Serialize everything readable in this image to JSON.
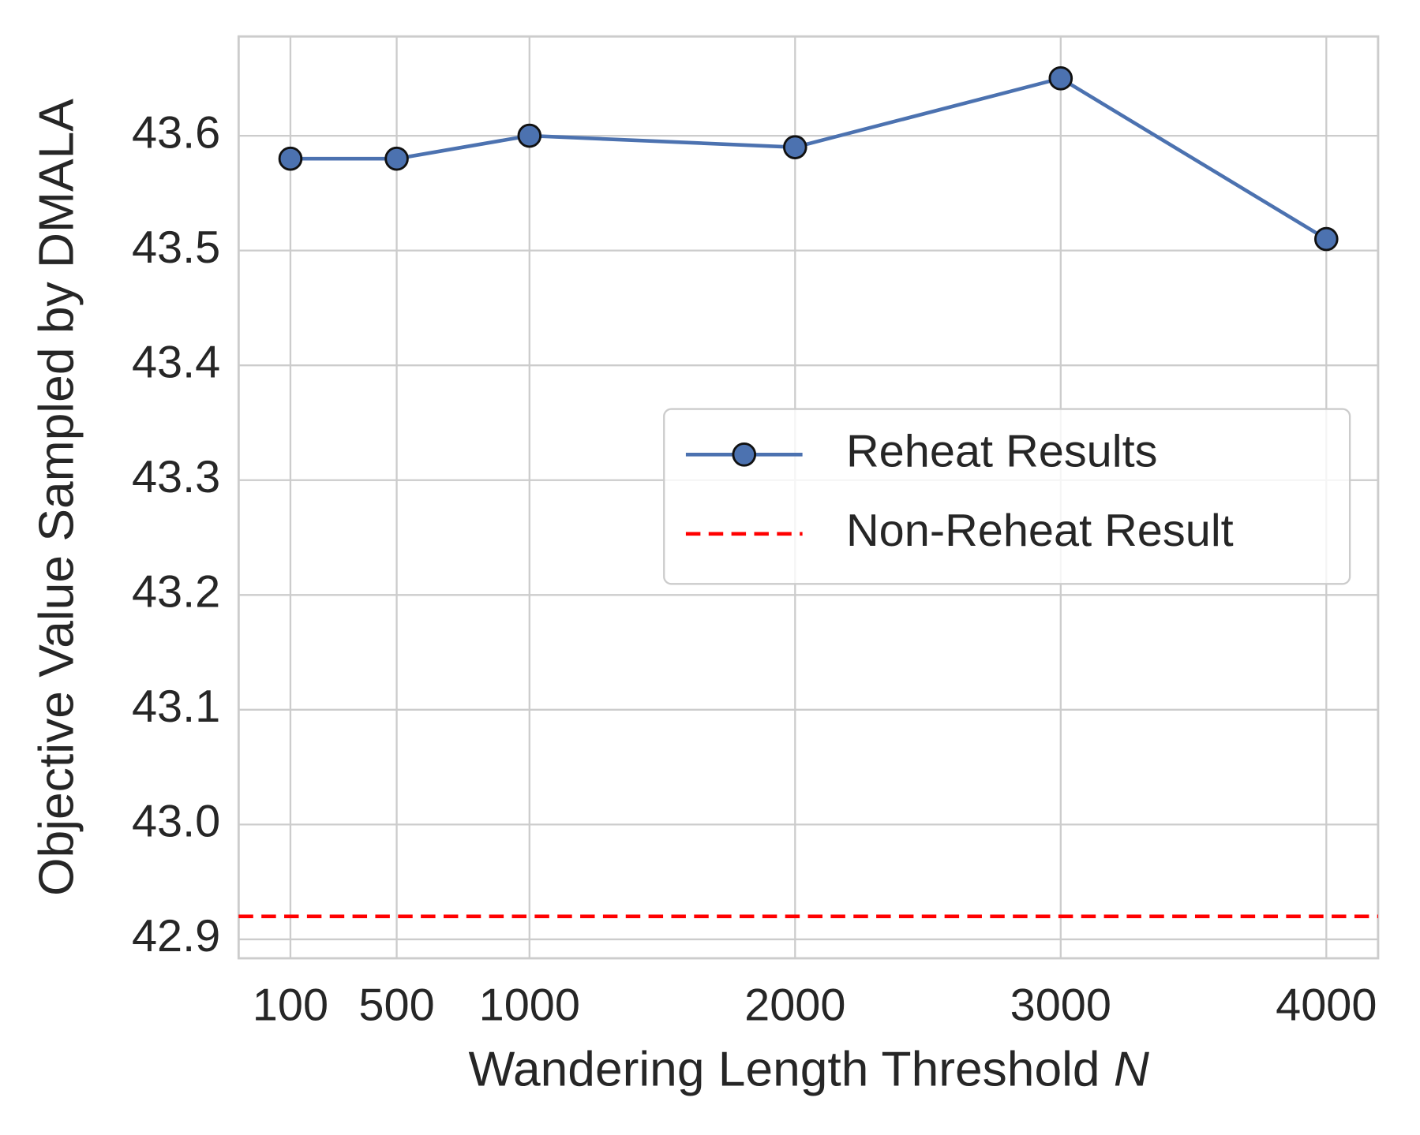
{
  "chart_data": {
    "type": "line",
    "xlabel": "Wandering Length Threshold",
    "xlabel_variable": "N",
    "ylabel": "Objective Value Sampled by DMALA",
    "x": [
      100,
      500,
      1000,
      2000,
      3000,
      4000
    ],
    "series": [
      {
        "name": "Reheat Results",
        "color": "#4c72b0",
        "values": [
          43.58,
          43.58,
          43.6,
          43.59,
          43.65,
          43.51
        ]
      }
    ],
    "hlines": [
      {
        "name": "Non-Reheat Result",
        "color": "#ff0000",
        "value": 42.92,
        "dashed": true
      }
    ],
    "xlim": [
      -95,
      4195
    ],
    "ylim": [
      42.8835,
      43.6865
    ],
    "xticks": [
      100,
      500,
      1000,
      2000,
      3000,
      4000
    ],
    "yticks": [
      42.9,
      {
        "value": 43,
        "label": "43.0"
      },
      43.1,
      43.2,
      43.3,
      43.4,
      43.5,
      43.6
    ],
    "grid": true,
    "legend": "center right"
  }
}
